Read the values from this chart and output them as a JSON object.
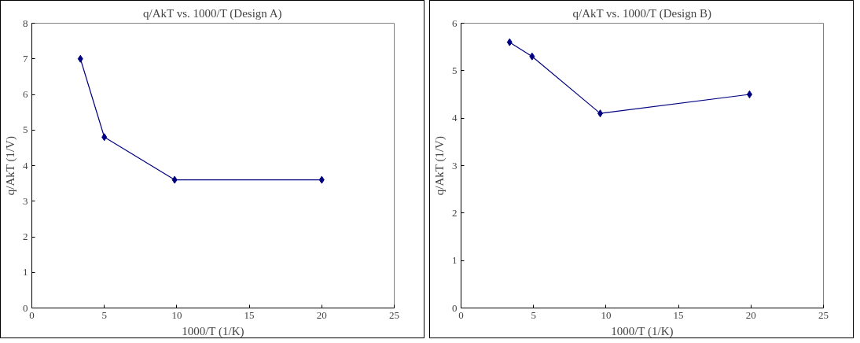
{
  "chart_data": [
    {
      "type": "line",
      "title": "q/AkT vs. 1000/T (Design A)",
      "xlabel": "1000/T (1/K)",
      "ylabel": "q/AkT (1/V)",
      "x": [
        3.35,
        5,
        9.85,
        20
      ],
      "series": [
        {
          "color": "#000080",
          "values": [
            7.0,
            4.8,
            3.6,
            3.6
          ]
        }
      ],
      "xlim": [
        0,
        25
      ],
      "xticks": [
        0,
        5,
        10,
        15,
        20,
        25
      ],
      "ylim": [
        0,
        8
      ],
      "yticks": [
        0,
        1,
        2,
        3,
        4,
        5,
        6,
        7,
        8
      ],
      "grid": false,
      "marker": "diamond",
      "line_style": "solid"
    },
    {
      "type": "line",
      "title": "q/AkT vs. 1000/T (Design B)",
      "xlabel": "1000/T (1/K)",
      "ylabel": "q/AkT (1/V)",
      "x": [
        3.35,
        4.9,
        9.6,
        19.9
      ],
      "series": [
        {
          "color": "#000080",
          "values": [
            5.6,
            5.3,
            4.1,
            4.5
          ]
        }
      ],
      "xlim": [
        0,
        25
      ],
      "xticks": [
        0,
        5,
        10,
        15,
        20,
        25
      ],
      "ylim": [
        0,
        6
      ],
      "yticks": [
        0,
        1,
        2,
        3,
        4,
        5,
        6
      ],
      "grid": false,
      "marker": "diamond",
      "line_style": "solid"
    }
  ]
}
